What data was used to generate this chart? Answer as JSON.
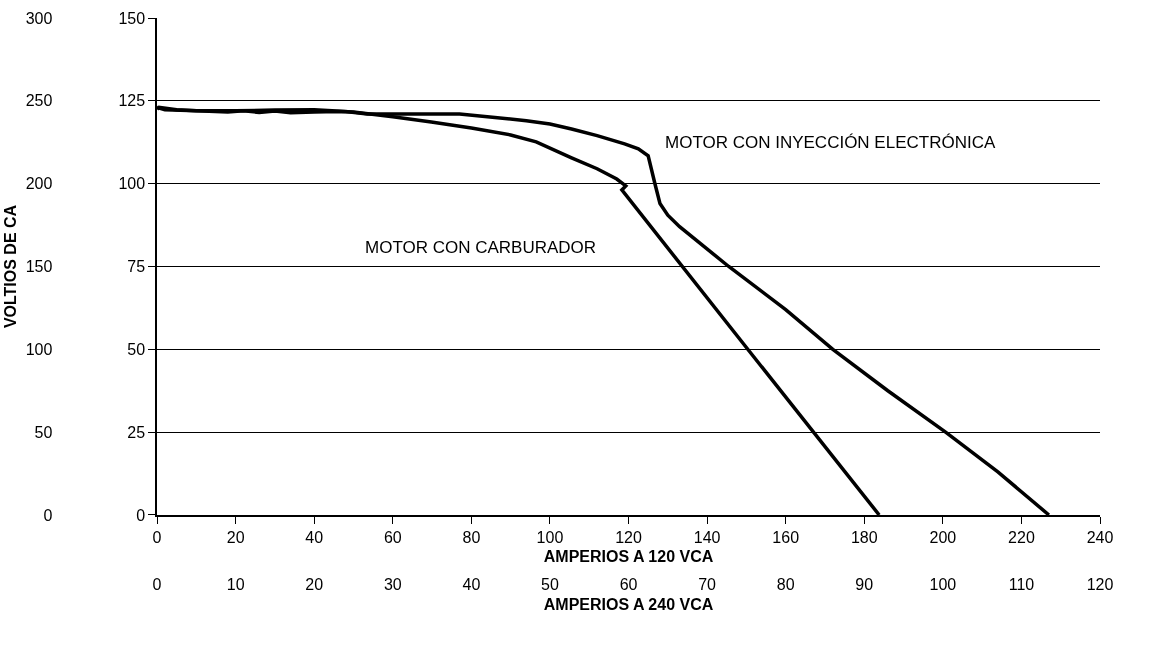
{
  "chart_data": {
    "type": "line",
    "xlabel": "AMPERIOS A 120 VCA",
    "x2label": "AMPERIOS A 240 VCA",
    "ylabel": "VOLTIOS DE CA",
    "series": [
      {
        "color": "#000000",
        "axis": "y2",
        "x": [
          0,
          0.5,
          5,
          10,
          20,
          30,
          40,
          48,
          53.5,
          65,
          77,
          86,
          94,
          100,
          105.5,
          112,
          119,
          122.5,
          125,
          126.8,
          128,
          130,
          133,
          145.5,
          160,
          172,
          186,
          200.7,
          214,
          227
        ],
        "values": [
          122.5,
          123,
          122.3,
          122,
          122,
          122.2,
          122.3,
          121.8,
          121,
          121,
          121,
          120,
          119,
          118,
          116.5,
          114.5,
          112,
          110.5,
          108.4,
          99.6,
          94,
          90.5,
          87,
          75,
          62,
          50,
          37.5,
          25,
          13,
          0
        ]
      },
      {
        "color": "#000000",
        "axis": "y2",
        "x": [
          0,
          2,
          10,
          18,
          22,
          26,
          30,
          34,
          40,
          46,
          50,
          60,
          69.8,
          80,
          90,
          96.5,
          105.5,
          112,
          117,
          119.3,
          118.3,
          150.5,
          183.8
        ],
        "values": [
          123,
          122.3,
          122,
          121.6,
          122,
          121.5,
          121.9,
          121.4,
          121.6,
          121.8,
          121.6,
          120.2,
          118.6,
          116.8,
          114.7,
          112.6,
          107.8,
          104.5,
          101.4,
          99.3,
          98.1,
          49.8,
          0
        ]
      }
    ],
    "annotations": [
      "MOTOR CON INYECCIÓN ELECTRÓNICA",
      "MOTOR CON CARBURADOR"
    ],
    "xlim": [
      0,
      240
    ],
    "xticks": [
      0,
      20,
      40,
      60,
      80,
      100,
      120,
      140,
      160,
      180,
      200,
      220,
      240
    ],
    "x2lim": [
      0,
      120
    ],
    "x2ticks": [
      0,
      10,
      20,
      30,
      40,
      50,
      60,
      70,
      80,
      90,
      100,
      110,
      120
    ],
    "ylim": [
      0,
      300
    ],
    "yticks": [
      0,
      50,
      100,
      150,
      200,
      250,
      300
    ],
    "y2lim": [
      0,
      150
    ],
    "y2ticks": [
      0,
      25,
      50,
      75,
      100,
      125,
      150
    ],
    "grid": "y"
  }
}
